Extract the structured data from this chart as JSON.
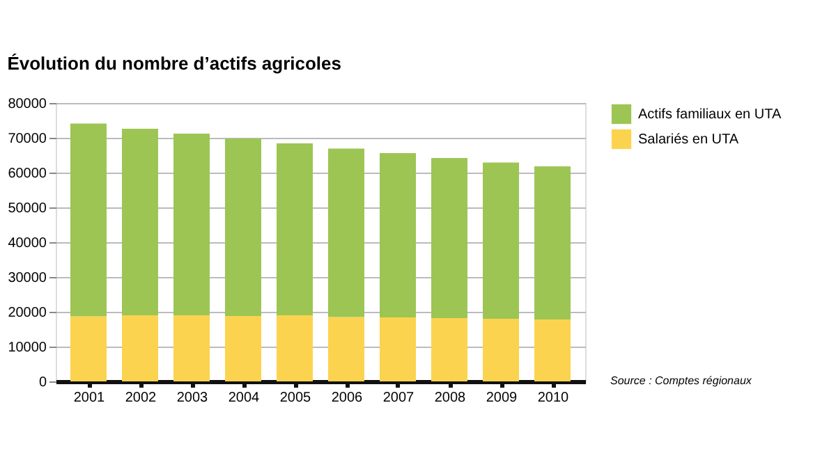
{
  "chart_data": {
    "type": "bar",
    "title": "Évolution du nombre d’actifs agricoles",
    "stacked": true,
    "categories": [
      "2001",
      "2002",
      "2003",
      "2004",
      "2005",
      "2006",
      "2007",
      "2008",
      "2009",
      "2010"
    ],
    "series": [
      {
        "name": "Salariés en UTA",
        "color": "#fcd34f",
        "values": [
          18700,
          19000,
          19000,
          18800,
          19000,
          18500,
          18400,
          18200,
          18000,
          17800
        ]
      },
      {
        "name": "Actifs familiaux en UTA",
        "color": "#9dc554",
        "values": [
          55400,
          53600,
          52200,
          51000,
          49400,
          48400,
          47200,
          46000,
          44900,
          44000
        ]
      }
    ],
    "ylim": [
      0,
      80000
    ],
    "yticks": [
      0,
      10000,
      20000,
      30000,
      40000,
      50000,
      60000,
      70000,
      80000
    ],
    "grid": "y",
    "legend": "right",
    "annotations": [
      "Source : Comptes régionaux"
    ]
  }
}
